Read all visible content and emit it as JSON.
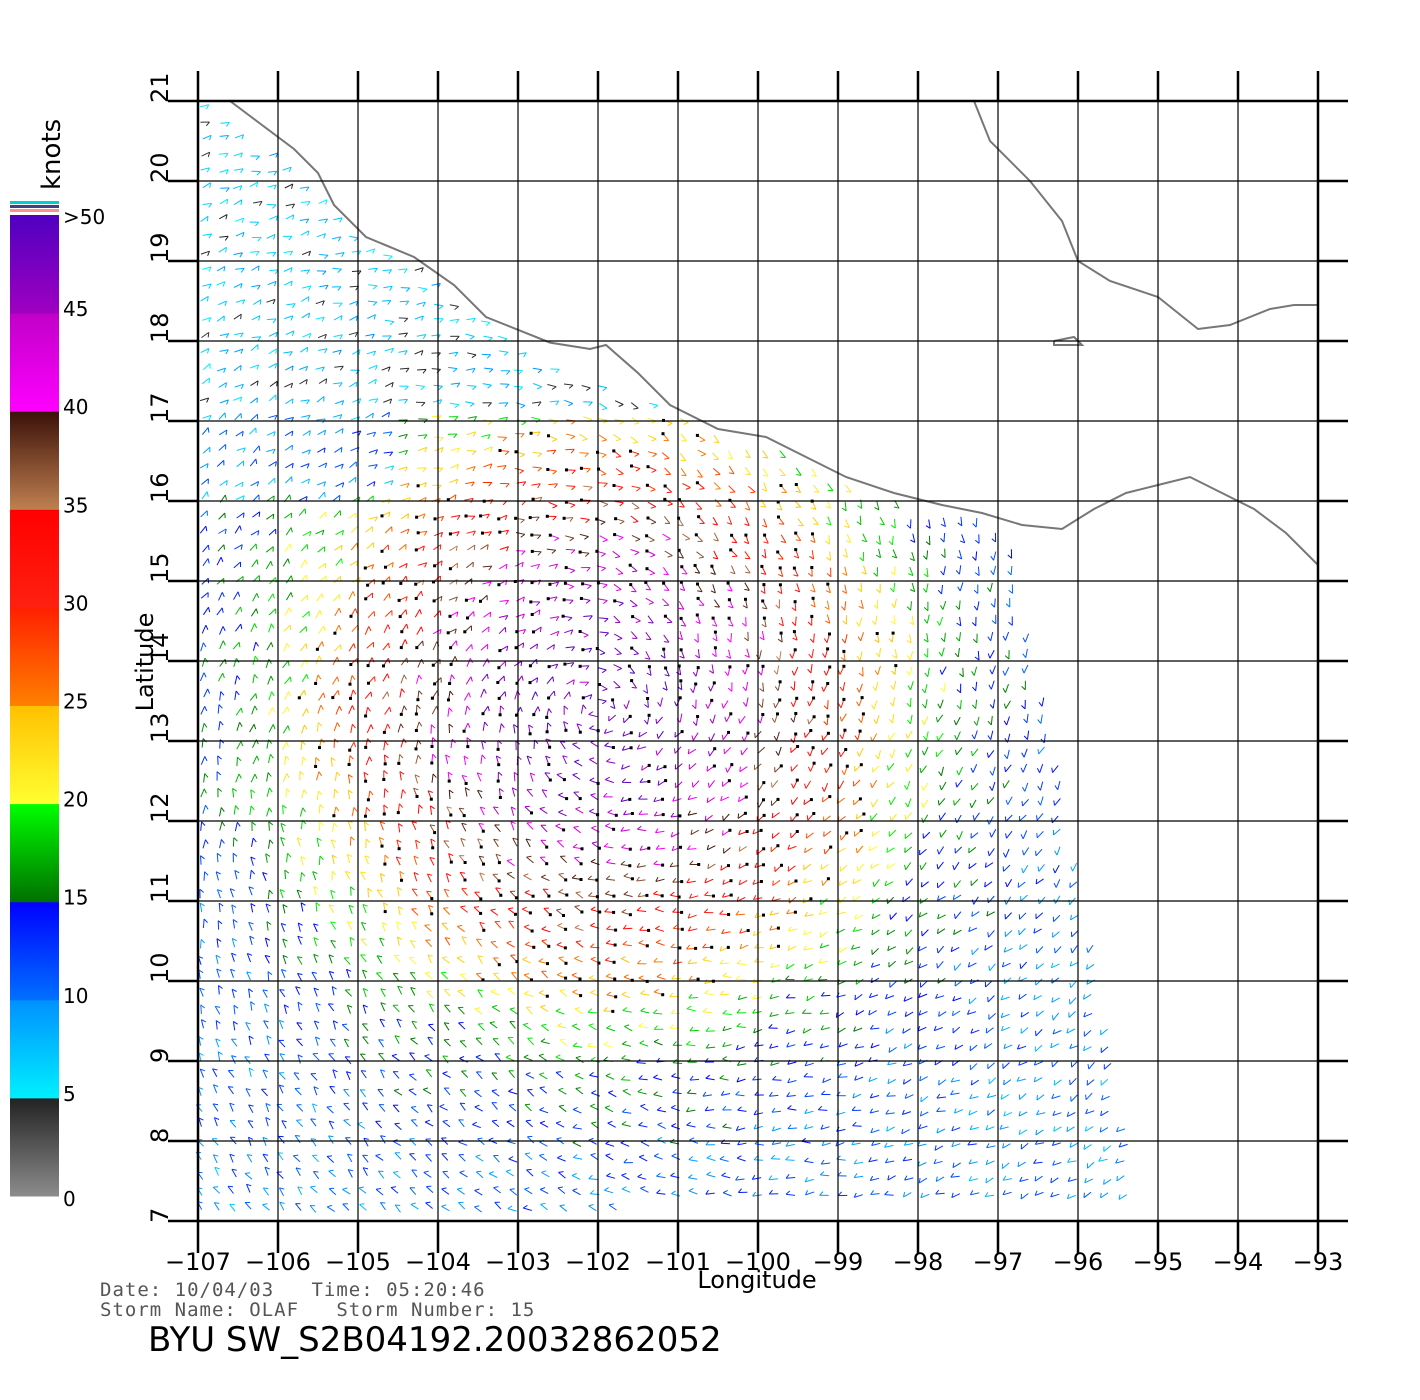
{
  "colorbar": {
    "title": "knots",
    "stops": [
      {
        "label": "0",
        "value": 0
      },
      {
        "label": "5",
        "value": 5
      },
      {
        "label": "10",
        "value": 10
      },
      {
        "label": "15",
        "value": 15
      },
      {
        "label": "20",
        "value": 20
      },
      {
        "label": "25",
        "value": 25
      },
      {
        "label": "30",
        "value": 30
      },
      {
        "label": "35",
        "value": 35
      },
      {
        "label": "40",
        "value": 40
      },
      {
        "label": "45",
        "value": 45
      },
      {
        "label": ">50",
        "value": 50
      }
    ],
    "bands": [
      {
        "from": 0,
        "to": 5,
        "colors": [
          "#8c8c8c",
          "#222222"
        ]
      },
      {
        "from": 5,
        "to": 10,
        "colors": [
          "#00f0ff",
          "#0090ff"
        ]
      },
      {
        "from": 10,
        "to": 15,
        "colors": [
          "#0070ff",
          "#0000ff"
        ]
      },
      {
        "from": 15,
        "to": 20,
        "colors": [
          "#007000",
          "#00ff00"
        ]
      },
      {
        "from": 20,
        "to": 25,
        "colors": [
          "#ffff30",
          "#ffc000"
        ]
      },
      {
        "from": 25,
        "to": 30,
        "colors": [
          "#ff8000",
          "#ff2000"
        ]
      },
      {
        "from": 30,
        "to": 35,
        "colors": [
          "#ff2010",
          "#ff0000"
        ]
      },
      {
        "from": 35,
        "to": 40,
        "colors": [
          "#c08050",
          "#3a1008"
        ]
      },
      {
        "from": 40,
        "to": 45,
        "colors": [
          "#ff00ff",
          "#c000c8"
        ]
      },
      {
        "from": 45,
        "to": 50,
        "colors": [
          "#a000c0",
          "#5000c0"
        ]
      }
    ],
    "top_swatch_colors": [
      "#00d0d0",
      "#404080",
      "#ff9090"
    ]
  },
  "map": {
    "x_axis_label": "Longitude",
    "y_axis_label": "Latitude",
    "lon_range": [
      -107,
      -93
    ],
    "lat_range": [
      7,
      21
    ],
    "lon_ticks": [
      "−107",
      "−106",
      "−105",
      "−104",
      "−103",
      "−102",
      "−101",
      "−100",
      "−99",
      "−98",
      "−97",
      "−96",
      "−95",
      "−94",
      "−93"
    ],
    "lat_ticks": [
      "7",
      "8",
      "9",
      "10",
      "11",
      "12",
      "13",
      "14",
      "15",
      "16",
      "17",
      "18",
      "19",
      "20",
      "21"
    ],
    "grid": true,
    "swath_corners_lonlat": [
      [
        -107,
        21
      ],
      [
        -102.6,
        17.7
      ],
      [
        -96.9,
        15.7
      ],
      [
        -96.5,
        14.0
      ],
      [
        -95.2,
        7.3
      ],
      [
        -107,
        7.0
      ]
    ],
    "storm_center_lonlat": [
      -102.0,
      13.4
    ],
    "land_color": "#ffffff",
    "coastline_color": "#777777"
  },
  "coastline": {
    "mexico_pacific_lonlat": [
      [
        -106.6,
        21.0
      ],
      [
        -106.2,
        20.7
      ],
      [
        -105.8,
        20.4
      ],
      [
        -105.5,
        20.1
      ],
      [
        -105.3,
        19.7
      ],
      [
        -104.9,
        19.3
      ],
      [
        -104.3,
        19.05
      ],
      [
        -103.8,
        18.7
      ],
      [
        -103.4,
        18.3
      ],
      [
        -102.6,
        17.98
      ],
      [
        -102.1,
        17.9
      ],
      [
        -101.9,
        17.95
      ],
      [
        -101.5,
        17.6
      ],
      [
        -101.1,
        17.2
      ],
      [
        -100.5,
        16.9
      ],
      [
        -99.9,
        16.8
      ],
      [
        -99.5,
        16.6
      ],
      [
        -98.9,
        16.3
      ],
      [
        -98.3,
        16.1
      ],
      [
        -97.7,
        15.95
      ],
      [
        -97.2,
        15.85
      ],
      [
        -96.7,
        15.7
      ],
      [
        -96.2,
        15.65
      ],
      [
        -95.8,
        15.9
      ],
      [
        -95.4,
        16.1
      ],
      [
        -95.0,
        16.2
      ],
      [
        -94.6,
        16.3
      ],
      [
        -94.2,
        16.1
      ],
      [
        -93.8,
        15.9
      ],
      [
        -93.4,
        15.6
      ],
      [
        -93.0,
        15.2
      ]
    ],
    "gulf_lonlat": [
      [
        -97.3,
        21.0
      ],
      [
        -97.1,
        20.5
      ],
      [
        -96.6,
        20.0
      ],
      [
        -96.2,
        19.5
      ],
      [
        -96.0,
        19.0
      ],
      [
        -95.6,
        18.75
      ],
      [
        -95.0,
        18.55
      ],
      [
        -94.5,
        18.15
      ],
      [
        -94.1,
        18.2
      ],
      [
        -93.6,
        18.4
      ],
      [
        -93.3,
        18.45
      ],
      [
        -93.0,
        18.45
      ]
    ],
    "lake_lonlat": [
      [
        -96.3,
        18.0
      ],
      [
        -96.05,
        18.05
      ],
      [
        -95.95,
        17.95
      ],
      [
        -96.3,
        17.95
      ],
      [
        -96.3,
        18.0
      ]
    ]
  },
  "footer": {
    "date_line": "Date: 10/04/03   Time: 05:20:46",
    "storm_line": "Storm Name: OLAF   Storm Number: 15",
    "product_id": "BYU SW_S2B04192.20032862052"
  }
}
